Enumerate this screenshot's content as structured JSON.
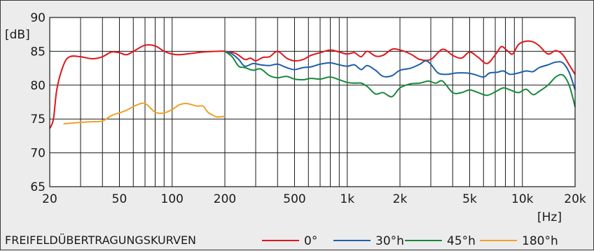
{
  "chart_data": {
    "type": "line",
    "title": "FREIFELDÜBERTRAGUNGSKURVEN",
    "xlabel": "[Hz]",
    "ylabel": "[dB]",
    "x_scale": "log",
    "xlim": [
      20,
      20000
    ],
    "ylim": [
      65,
      90
    ],
    "grid": true,
    "legend_position": "bottom-right",
    "x_ticks": [
      {
        "value": 20,
        "label": "20"
      },
      {
        "value": 50,
        "label": "50"
      },
      {
        "value": 100,
        "label": "100"
      },
      {
        "value": 200,
        "label": "200"
      },
      {
        "value": 500,
        "label": "500"
      },
      {
        "value": 1000,
        "label": "1k"
      },
      {
        "value": 2000,
        "label": "2k"
      },
      {
        "value": 5000,
        "label": "5k"
      },
      {
        "value": 10000,
        "label": "10k"
      },
      {
        "value": 20000,
        "label": "20k"
      }
    ],
    "y_ticks": [
      {
        "value": 90,
        "label": "90"
      },
      {
        "value": 85,
        "label": "85"
      },
      {
        "value": 80,
        "label": "80"
      },
      {
        "value": 75,
        "label": "75"
      },
      {
        "value": 70,
        "label": "70"
      },
      {
        "value": 65,
        "label": "65"
      }
    ],
    "series": [
      {
        "name": "0°",
        "color": "#e0161b",
        "points": [
          [
            20,
            73.6
          ],
          [
            21,
            75
          ],
          [
            22,
            79.5
          ],
          [
            24,
            83
          ],
          [
            26,
            84.2
          ],
          [
            30,
            84.2
          ],
          [
            35,
            83.9
          ],
          [
            40,
            84.2
          ],
          [
            45,
            84.9
          ],
          [
            50,
            84.8
          ],
          [
            55,
            84.5
          ],
          [
            62,
            85.2
          ],
          [
            70,
            85.9
          ],
          [
            80,
            85.8
          ],
          [
            90,
            85
          ],
          [
            100,
            84.6
          ],
          [
            110,
            84.5
          ],
          [
            130,
            84.7
          ],
          [
            150,
            84.9
          ],
          [
            180,
            85
          ],
          [
            200,
            85
          ],
          [
            230,
            84.7
          ],
          [
            260,
            83.8
          ],
          [
            280,
            84
          ],
          [
            300,
            83.6
          ],
          [
            330,
            84.1
          ],
          [
            360,
            84.2
          ],
          [
            400,
            85
          ],
          [
            450,
            84
          ],
          [
            500,
            83.6
          ],
          [
            560,
            83.8
          ],
          [
            620,
            84.4
          ],
          [
            700,
            84.8
          ],
          [
            800,
            85.2
          ],
          [
            900,
            84.9
          ],
          [
            1000,
            84.6
          ],
          [
            1100,
            84.8
          ],
          [
            1200,
            84.2
          ],
          [
            1300,
            85
          ],
          [
            1450,
            84.3
          ],
          [
            1600,
            84.4
          ],
          [
            1800,
            85.3
          ],
          [
            2000,
            85.2
          ],
          [
            2300,
            84.6
          ],
          [
            2600,
            83.8
          ],
          [
            3000,
            83.8
          ],
          [
            3500,
            85.3
          ],
          [
            4000,
            84.4
          ],
          [
            4500,
            84
          ],
          [
            5000,
            84.9
          ],
          [
            5600,
            84.1
          ],
          [
            6300,
            83.2
          ],
          [
            7100,
            84.7
          ],
          [
            7600,
            85.7
          ],
          [
            8200,
            85.1
          ],
          [
            8800,
            84.6
          ],
          [
            9500,
            86
          ],
          [
            10500,
            86.5
          ],
          [
            11500,
            86.4
          ],
          [
            12500,
            85.8
          ],
          [
            14000,
            84.6
          ],
          [
            15500,
            85.1
          ],
          [
            17000,
            84.5
          ],
          [
            18500,
            83
          ],
          [
            20000,
            81.6
          ]
        ]
      },
      {
        "name": "30°h",
        "color": "#1f5fa8",
        "points": [
          [
            200,
            85
          ],
          [
            220,
            84.6
          ],
          [
            240,
            83.8
          ],
          [
            260,
            82.8
          ],
          [
            290,
            83.2
          ],
          [
            320,
            83
          ],
          [
            360,
            82.9
          ],
          [
            400,
            83.1
          ],
          [
            450,
            82.6
          ],
          [
            500,
            82.3
          ],
          [
            560,
            82.6
          ],
          [
            620,
            82.7
          ],
          [
            700,
            83.1
          ],
          [
            800,
            83.3
          ],
          [
            900,
            83
          ],
          [
            1000,
            82.8
          ],
          [
            1100,
            83
          ],
          [
            1200,
            82.3
          ],
          [
            1300,
            82.9
          ],
          [
            1450,
            82.2
          ],
          [
            1600,
            81.3
          ],
          [
            1800,
            81.4
          ],
          [
            2000,
            82.2
          ],
          [
            2300,
            82.5
          ],
          [
            2600,
            83.1
          ],
          [
            2800,
            83.6
          ],
          [
            3000,
            83.1
          ],
          [
            3300,
            81.8
          ],
          [
            3700,
            81.6
          ],
          [
            4200,
            81.8
          ],
          [
            4800,
            81.8
          ],
          [
            5300,
            81.6
          ],
          [
            6000,
            81.2
          ],
          [
            6500,
            81.8
          ],
          [
            7200,
            81.9
          ],
          [
            7800,
            82.1
          ],
          [
            8500,
            81.6
          ],
          [
            9500,
            81.8
          ],
          [
            10500,
            82.1
          ],
          [
            11500,
            82
          ],
          [
            12500,
            82.6
          ],
          [
            14000,
            83
          ],
          [
            15500,
            83.4
          ],
          [
            17000,
            83.3
          ],
          [
            18500,
            81.9
          ],
          [
            20000,
            79.3
          ]
        ]
      },
      {
        "name": "45°h",
        "color": "#16883a",
        "points": [
          [
            200,
            85
          ],
          [
            220,
            84.2
          ],
          [
            240,
            82.8
          ],
          [
            260,
            82.6
          ],
          [
            290,
            82.2
          ],
          [
            320,
            82.4
          ],
          [
            360,
            81.4
          ],
          [
            400,
            81.1
          ],
          [
            450,
            81.3
          ],
          [
            500,
            80.9
          ],
          [
            560,
            80.8
          ],
          [
            620,
            81
          ],
          [
            700,
            80.9
          ],
          [
            800,
            81.2
          ],
          [
            900,
            80.8
          ],
          [
            1000,
            80.4
          ],
          [
            1100,
            80.3
          ],
          [
            1200,
            80.3
          ],
          [
            1300,
            79.8
          ],
          [
            1450,
            78.7
          ],
          [
            1600,
            78.9
          ],
          [
            1800,
            78.3
          ],
          [
            2000,
            79.6
          ],
          [
            2300,
            80.2
          ],
          [
            2600,
            80.3
          ],
          [
            2900,
            80.6
          ],
          [
            3200,
            80.3
          ],
          [
            3500,
            80.6
          ],
          [
            4000,
            78.9
          ],
          [
            4500,
            78.9
          ],
          [
            5000,
            79.3
          ],
          [
            5600,
            78.9
          ],
          [
            6300,
            78.5
          ],
          [
            7100,
            79.1
          ],
          [
            7800,
            79.6
          ],
          [
            8500,
            79.3
          ],
          [
            9500,
            78.9
          ],
          [
            10500,
            79.4
          ],
          [
            11500,
            78.6
          ],
          [
            12500,
            79.1
          ],
          [
            14000,
            80
          ],
          [
            15500,
            81.2
          ],
          [
            17000,
            81.5
          ],
          [
            18500,
            80
          ],
          [
            20000,
            76.8
          ]
        ]
      },
      {
        "name": "180°h",
        "color": "#f0a028",
        "points": [
          [
            24,
            74.3
          ],
          [
            27,
            74.4
          ],
          [
            30,
            74.5
          ],
          [
            35,
            74.6
          ],
          [
            40,
            74.7
          ],
          [
            45,
            75.5
          ],
          [
            50,
            75.9
          ],
          [
            55,
            76.3
          ],
          [
            62,
            77
          ],
          [
            70,
            77.3
          ],
          [
            80,
            76
          ],
          [
            90,
            75.9
          ],
          [
            100,
            76.4
          ],
          [
            110,
            77.1
          ],
          [
            120,
            77.3
          ],
          [
            130,
            77.1
          ],
          [
            140,
            76.9
          ],
          [
            150,
            76.9
          ],
          [
            160,
            76
          ],
          [
            170,
            75.6
          ],
          [
            180,
            75.3
          ],
          [
            200,
            75.4
          ]
        ]
      }
    ]
  }
}
